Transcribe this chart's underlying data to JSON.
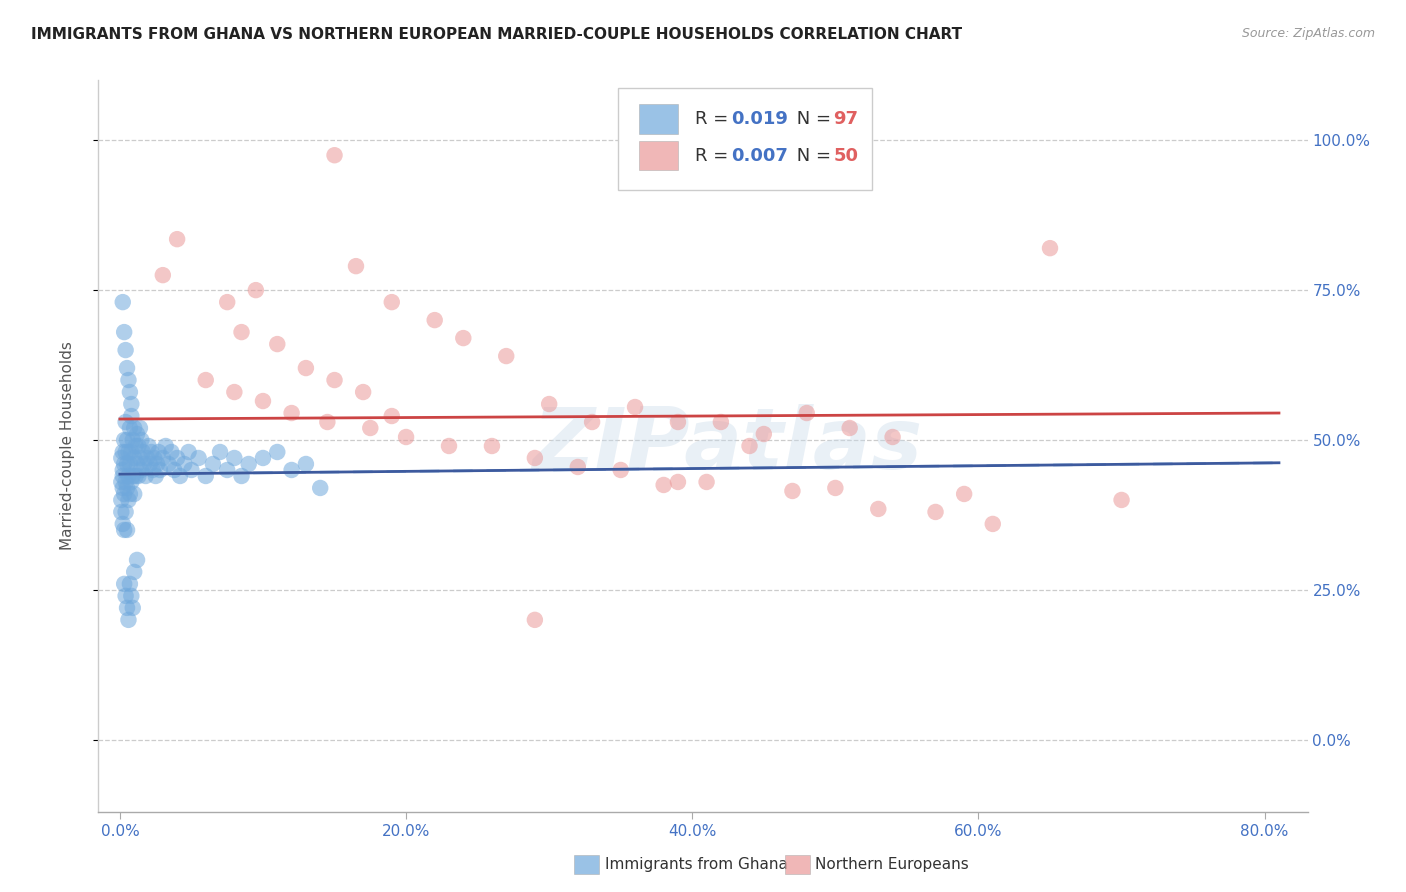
{
  "title": "IMMIGRANTS FROM GHANA VS NORTHERN EUROPEAN MARRIED-COUPLE HOUSEHOLDS CORRELATION CHART",
  "source": "Source: ZipAtlas.com",
  "ylabel": "Married-couple Households",
  "x_ticks": [
    0.0,
    0.2,
    0.4,
    0.6,
    0.8
  ],
  "x_tick_labels": [
    "0.0%",
    "20.0%",
    "40.0%",
    "60.0%",
    "80.0%"
  ],
  "y_ticks": [
    0.0,
    0.25,
    0.5,
    0.75,
    1.0
  ],
  "y_tick_labels": [
    "0.0%",
    "25.0%",
    "50.0%",
    "75.0%",
    "100.0%"
  ],
  "xlim": [
    -0.015,
    0.83
  ],
  "ylim": [
    -0.12,
    1.1
  ],
  "blue_color": "#6fa8dc",
  "pink_color": "#ea9999",
  "trendline_blue_solid": "#3d5a9e",
  "trendline_blue_dashed": "#9fc5e8",
  "trendline_pink_solid": "#cc4444",
  "watermark": "ZIPatlas",
  "bottom_legend_blue": "Immigrants from Ghana",
  "bottom_legend_pink": "Northern Europeans",
  "blue_x": [
    0.001,
    0.001,
    0.001,
    0.001,
    0.002,
    0.002,
    0.002,
    0.002,
    0.002,
    0.003,
    0.003,
    0.003,
    0.003,
    0.004,
    0.004,
    0.004,
    0.004,
    0.005,
    0.005,
    0.005,
    0.005,
    0.006,
    0.006,
    0.006,
    0.007,
    0.007,
    0.007,
    0.008,
    0.008,
    0.008,
    0.009,
    0.009,
    0.01,
    0.01,
    0.01,
    0.011,
    0.011,
    0.012,
    0.012,
    0.013,
    0.013,
    0.014,
    0.014,
    0.015,
    0.015,
    0.016,
    0.017,
    0.018,
    0.019,
    0.02,
    0.021,
    0.022,
    0.023,
    0.024,
    0.025,
    0.026,
    0.027,
    0.028,
    0.03,
    0.032,
    0.034,
    0.036,
    0.038,
    0.04,
    0.042,
    0.045,
    0.048,
    0.05,
    0.055,
    0.06,
    0.065,
    0.07,
    0.075,
    0.08,
    0.085,
    0.09,
    0.1,
    0.11,
    0.12,
    0.13,
    0.002,
    0.003,
    0.004,
    0.005,
    0.006,
    0.007,
    0.008,
    0.003,
    0.004,
    0.005,
    0.006,
    0.007,
    0.008,
    0.009,
    0.01,
    0.012,
    0.14
  ],
  "blue_y": [
    0.43,
    0.4,
    0.47,
    0.38,
    0.45,
    0.42,
    0.48,
    0.36,
    0.44,
    0.46,
    0.41,
    0.5,
    0.35,
    0.48,
    0.43,
    0.53,
    0.38,
    0.46,
    0.5,
    0.42,
    0.35,
    0.44,
    0.48,
    0.4,
    0.52,
    0.46,
    0.41,
    0.54,
    0.48,
    0.43,
    0.5,
    0.44,
    0.52,
    0.47,
    0.41,
    0.49,
    0.44,
    0.51,
    0.46,
    0.49,
    0.44,
    0.52,
    0.47,
    0.5,
    0.45,
    0.48,
    0.46,
    0.44,
    0.47,
    0.49,
    0.46,
    0.48,
    0.45,
    0.47,
    0.44,
    0.46,
    0.48,
    0.45,
    0.47,
    0.49,
    0.46,
    0.48,
    0.45,
    0.47,
    0.44,
    0.46,
    0.48,
    0.45,
    0.47,
    0.44,
    0.46,
    0.48,
    0.45,
    0.47,
    0.44,
    0.46,
    0.47,
    0.48,
    0.45,
    0.46,
    0.73,
    0.68,
    0.65,
    0.62,
    0.6,
    0.58,
    0.56,
    0.26,
    0.24,
    0.22,
    0.2,
    0.26,
    0.24,
    0.22,
    0.28,
    0.3,
    0.42
  ],
  "pink_x": [
    0.15,
    0.03,
    0.04,
    0.165,
    0.075,
    0.095,
    0.19,
    0.085,
    0.22,
    0.11,
    0.24,
    0.27,
    0.13,
    0.15,
    0.17,
    0.3,
    0.19,
    0.33,
    0.36,
    0.39,
    0.42,
    0.45,
    0.48,
    0.51,
    0.54,
    0.06,
    0.08,
    0.1,
    0.12,
    0.145,
    0.175,
    0.2,
    0.23,
    0.26,
    0.29,
    0.32,
    0.35,
    0.38,
    0.41,
    0.44,
    0.47,
    0.5,
    0.53,
    0.57,
    0.61,
    0.65,
    0.7,
    0.39,
    0.59,
    0.29
  ],
  "pink_y": [
    0.975,
    0.775,
    0.835,
    0.79,
    0.73,
    0.75,
    0.73,
    0.68,
    0.7,
    0.66,
    0.67,
    0.64,
    0.62,
    0.6,
    0.58,
    0.56,
    0.54,
    0.53,
    0.555,
    0.53,
    0.53,
    0.51,
    0.545,
    0.52,
    0.505,
    0.6,
    0.58,
    0.565,
    0.545,
    0.53,
    0.52,
    0.505,
    0.49,
    0.49,
    0.47,
    0.455,
    0.45,
    0.425,
    0.43,
    0.49,
    0.415,
    0.42,
    0.385,
    0.38,
    0.36,
    0.82,
    0.4,
    0.43,
    0.41,
    0.2
  ],
  "trendline_blue_start_y": 0.443,
  "trendline_blue_end_y": 0.462,
  "trendline_pink_start_y": 0.535,
  "trendline_pink_end_y": 0.545,
  "trendline_x_start": 0.0,
  "trendline_x_end": 0.81
}
